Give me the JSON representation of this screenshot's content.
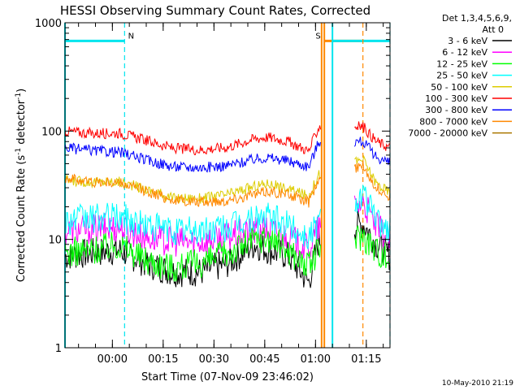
{
  "chart_data": {
    "type": "line",
    "title": "HESSI Observing Summary Count Rates, Corrected",
    "xlabel": "Start Time (07-Nov-09 23:46:02)",
    "ylabel": "Corrected Count Rate (s⁻¹ detector⁻¹)",
    "y_scale": "log",
    "ylim": [
      1,
      1000
    ],
    "xlim_minutes": [
      0,
      96
    ],
    "x_ticks": [
      {
        "label": "00:00",
        "minute": 14
      },
      {
        "label": "00:15",
        "minute": 29
      },
      {
        "label": "00:30",
        "minute": 44
      },
      {
        "label": "00:45",
        "minute": 59
      },
      {
        "label": "01:00",
        "minute": 74
      },
      {
        "label": "01:15",
        "minute": 89
      }
    ],
    "y_ticks": [
      {
        "label": "1",
        "value": 1
      },
      {
        "label": "10",
        "value": 10
      },
      {
        "label": "100",
        "value": 100
      },
      {
        "label": "1000",
        "value": 1000
      }
    ],
    "legend": {
      "header_line1": "Det 1,3,4,5,6,9,",
      "header_line2": "Att 0",
      "placement": "right"
    },
    "series": [
      {
        "name": "3 - 6 keV",
        "color": "#000000",
        "x": [
          0,
          8,
          16,
          24,
          32,
          40,
          48,
          56,
          60,
          66,
          72,
          75,
          88,
          92,
          96
        ],
        "y": [
          7,
          7.5,
          8,
          6,
          5,
          5,
          6,
          9,
          8,
          7,
          4,
          10,
          14,
          9,
          7
        ]
      },
      {
        "name": "6 - 12 keV",
        "color": "#ff00ff",
        "x": [
          0,
          8,
          16,
          24,
          32,
          40,
          48,
          56,
          60,
          66,
          72,
          75,
          88,
          92,
          96
        ],
        "y": [
          12,
          12.5,
          13,
          10.5,
          9.5,
          9.5,
          10.5,
          12,
          12.5,
          10.5,
          8,
          13,
          22,
          13,
          10
        ]
      },
      {
        "name": "12 - 25 keV",
        "color": "#00ff00",
        "x": [
          0,
          8,
          16,
          24,
          32,
          40,
          48,
          56,
          60,
          66,
          72,
          75,
          88,
          92,
          96
        ],
        "y": [
          7.5,
          8,
          9,
          6.5,
          5.5,
          6,
          7.5,
          10,
          10.5,
          8,
          5.5,
          8,
          11,
          8,
          6.5
        ]
      },
      {
        "name": "25 - 50 keV",
        "color": "#00ffff",
        "x": [
          0,
          8,
          16,
          24,
          32,
          40,
          48,
          56,
          60,
          66,
          72,
          75,
          88,
          92,
          96
        ],
        "y": [
          15,
          15.5,
          16,
          13.5,
          12,
          12,
          13,
          15.5,
          16,
          13.5,
          10.5,
          15,
          26,
          15,
          12
        ]
      },
      {
        "name": "50 - 100 keV",
        "color": "#ddcc00",
        "x": [
          0,
          8,
          16,
          24,
          32,
          40,
          48,
          56,
          60,
          66,
          72,
          75,
          88,
          92,
          96
        ],
        "y": [
          35,
          34,
          34,
          29,
          24,
          24,
          26,
          31,
          33,
          29,
          25,
          40,
          55,
          33,
          27
        ]
      },
      {
        "name": "100 - 300 keV",
        "color": "#ff0000",
        "x": [
          0,
          8,
          16,
          24,
          32,
          40,
          48,
          56,
          60,
          66,
          72,
          75,
          88,
          92,
          96
        ],
        "y": [
          100,
          95,
          96,
          82,
          69,
          67,
          71,
          85,
          88,
          80,
          65,
          110,
          110,
          80,
          70
        ]
      },
      {
        "name": "300 - 800 keV",
        "color": "#0000ff",
        "x": [
          0,
          8,
          16,
          24,
          32,
          40,
          48,
          56,
          60,
          66,
          72,
          75,
          88,
          92,
          96
        ],
        "y": [
          70,
          66,
          64,
          54,
          47,
          46,
          48,
          55,
          57,
          53,
          47,
          80,
          80,
          58,
          50
        ]
      },
      {
        "name": "800 - 7000 keV",
        "color": "#ff8800",
        "x": [
          0,
          8,
          16,
          24,
          32,
          40,
          48,
          56,
          60,
          66,
          72,
          75,
          88,
          92,
          96
        ],
        "y": [
          37,
          34,
          33,
          28,
          23,
          22,
          23,
          26,
          28,
          26,
          22,
          36,
          48,
          30,
          25
        ]
      },
      {
        "name": "7000 - 20000 keV",
        "color": "#aa7700",
        "x": [],
        "y": []
      }
    ],
    "intervals": [
      {
        "label": "N",
        "color": "#00e5ee",
        "start_minute": 0,
        "end_minute": 17.6,
        "style": "night"
      },
      {
        "label": "S",
        "color": "#ff8800",
        "start_minute": 76.5,
        "end_minute": 88,
        "style": "saa"
      },
      {
        "label": "",
        "color": "#00e5ee",
        "start_minute": 79,
        "end_minute": 96,
        "style": "night"
      }
    ],
    "vertical_markers": [
      {
        "minute": 0,
        "color": "#00e5ee",
        "style": "solid"
      },
      {
        "minute": 17.6,
        "color": "#00e5ee",
        "style": "dashed"
      },
      {
        "minute": 75.8,
        "color": "#ff8800",
        "style": "solid"
      },
      {
        "minute": 76.6,
        "color": "#ff8800",
        "style": "solid"
      },
      {
        "minute": 79,
        "color": "#00e5ee",
        "style": "solid"
      },
      {
        "minute": 88,
        "color": "#ff8800",
        "style": "dashed"
      },
      {
        "minute": 96,
        "color": "#00e5ee",
        "style": "dashed"
      }
    ]
  },
  "footer": {
    "timestamp": "10-May-2010 21:19"
  }
}
